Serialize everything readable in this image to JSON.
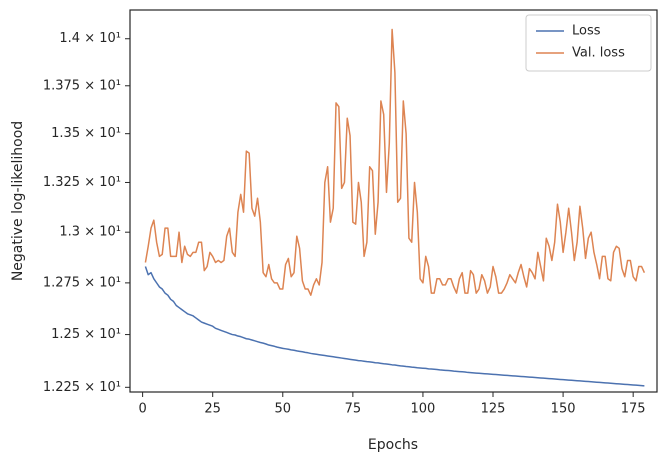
{
  "chart_data": {
    "type": "line",
    "xlabel": "Epochs",
    "ylabel": "Negative log-likelihood",
    "x": [
      1,
      2,
      3,
      4,
      5,
      6,
      7,
      8,
      9,
      10,
      11,
      12,
      13,
      14,
      15,
      16,
      17,
      18,
      19,
      20,
      21,
      22,
      23,
      24,
      25,
      26,
      27,
      28,
      29,
      30,
      31,
      32,
      33,
      34,
      35,
      36,
      37,
      38,
      39,
      40,
      41,
      42,
      43,
      44,
      45,
      46,
      47,
      48,
      49,
      50,
      51,
      52,
      53,
      54,
      55,
      56,
      57,
      58,
      59,
      60,
      61,
      62,
      63,
      64,
      65,
      66,
      67,
      68,
      69,
      70,
      71,
      72,
      73,
      74,
      75,
      76,
      77,
      78,
      79,
      80,
      81,
      82,
      83,
      84,
      85,
      86,
      87,
      88,
      89,
      90,
      91,
      92,
      93,
      94,
      95,
      96,
      97,
      98,
      99,
      100,
      101,
      102,
      103,
      104,
      105,
      106,
      107,
      108,
      109,
      110,
      111,
      112,
      113,
      114,
      115,
      116,
      117,
      118,
      119,
      120,
      121,
      122,
      123,
      124,
      125,
      126,
      127,
      128,
      129,
      130,
      131,
      132,
      133,
      134,
      135,
      136,
      137,
      138,
      139,
      140,
      141,
      142,
      143,
      144,
      145,
      146,
      147,
      148,
      149,
      150,
      151,
      152,
      153,
      154,
      155,
      156,
      157,
      158,
      159,
      160,
      161,
      162,
      163,
      164,
      165,
      166,
      167,
      168,
      169,
      170,
      171,
      172,
      173,
      174,
      175,
      176,
      177,
      178,
      179
    ],
    "series": [
      {
        "name": "Loss",
        "color": "#4c72b0",
        "values": [
          12.83,
          12.79,
          12.8,
          12.77,
          12.75,
          12.73,
          12.72,
          12.7,
          12.69,
          12.67,
          12.66,
          12.64,
          12.63,
          12.62,
          12.61,
          12.6,
          12.595,
          12.59,
          12.58,
          12.57,
          12.56,
          12.555,
          12.55,
          12.545,
          12.54,
          12.53,
          12.525,
          12.52,
          12.515,
          12.51,
          12.505,
          12.5,
          12.498,
          12.493,
          12.49,
          12.485,
          12.48,
          12.478,
          12.474,
          12.47,
          12.466,
          12.462,
          12.459,
          12.455,
          12.45,
          12.447,
          12.444,
          12.44,
          12.437,
          12.434,
          12.432,
          12.43,
          12.427,
          12.425,
          12.422,
          12.42,
          12.418,
          12.415,
          12.413,
          12.41,
          12.408,
          12.406,
          12.404,
          12.402,
          12.4,
          12.398,
          12.396,
          12.394,
          12.392,
          12.39,
          12.388,
          12.386,
          12.384,
          12.382,
          12.38,
          12.378,
          12.376,
          12.375,
          12.373,
          12.371,
          12.37,
          12.368,
          12.366,
          12.365,
          12.363,
          12.361,
          12.36,
          12.358,
          12.356,
          12.355,
          12.353,
          12.351,
          12.35,
          12.348,
          12.347,
          12.345,
          12.344,
          12.342,
          12.341,
          12.34,
          12.339,
          12.337,
          12.336,
          12.335,
          12.334,
          12.332,
          12.331,
          12.33,
          12.329,
          12.328,
          12.326,
          12.325,
          12.324,
          12.323,
          12.322,
          12.32,
          12.319,
          12.318,
          12.317,
          12.316,
          12.315,
          12.314,
          12.313,
          12.312,
          12.311,
          12.31,
          12.309,
          12.308,
          12.307,
          12.306,
          12.305,
          12.304,
          12.303,
          12.302,
          12.301,
          12.3,
          12.299,
          12.298,
          12.297,
          12.296,
          12.295,
          12.294,
          12.293,
          12.292,
          12.291,
          12.29,
          12.289,
          12.288,
          12.287,
          12.286,
          12.285,
          12.284,
          12.283,
          12.282,
          12.281,
          12.28,
          12.279,
          12.278,
          12.277,
          12.276,
          12.275,
          12.274,
          12.273,
          12.272,
          12.271,
          12.27,
          12.269,
          12.268,
          12.267,
          12.266,
          12.265,
          12.264,
          12.263,
          12.262,
          12.261,
          12.26,
          12.259,
          12.258,
          12.257
        ]
      },
      {
        "name": "Val. loss",
        "color": "#dd8452",
        "values": [
          12.85,
          12.93,
          13.02,
          13.06,
          12.95,
          12.88,
          12.89,
          13.02,
          13.02,
          12.88,
          12.88,
          12.88,
          13.0,
          12.85,
          12.93,
          12.89,
          12.88,
          12.9,
          12.9,
          12.95,
          12.95,
          12.81,
          12.83,
          12.9,
          12.88,
          12.85,
          12.86,
          12.85,
          12.86,
          12.98,
          13.02,
          12.9,
          12.88,
          13.1,
          13.19,
          13.1,
          13.41,
          13.4,
          13.12,
          13.08,
          13.17,
          13.05,
          12.8,
          12.78,
          12.84,
          12.77,
          12.75,
          12.75,
          12.72,
          12.72,
          12.84,
          12.87,
          12.78,
          12.8,
          12.98,
          12.92,
          12.76,
          12.72,
          12.72,
          12.69,
          12.74,
          12.77,
          12.74,
          12.85,
          13.25,
          13.33,
          13.05,
          13.12,
          13.66,
          13.64,
          13.22,
          13.25,
          13.58,
          13.49,
          13.05,
          13.04,
          13.25,
          13.15,
          12.88,
          12.95,
          13.33,
          13.31,
          12.99,
          13.15,
          13.67,
          13.6,
          13.2,
          13.45,
          14.05,
          13.82,
          13.15,
          13.17,
          13.67,
          13.5,
          12.97,
          12.95,
          13.25,
          13.1,
          12.77,
          12.75,
          12.88,
          12.83,
          12.7,
          12.7,
          12.77,
          12.77,
          12.74,
          12.74,
          12.77,
          12.77,
          12.73,
          12.7,
          12.77,
          12.8,
          12.7,
          12.7,
          12.81,
          12.79,
          12.7,
          12.72,
          12.79,
          12.76,
          12.7,
          12.73,
          12.83,
          12.78,
          12.7,
          12.7,
          12.72,
          12.75,
          12.79,
          12.77,
          12.75,
          12.8,
          12.84,
          12.78,
          12.73,
          12.82,
          12.8,
          12.77,
          12.9,
          12.83,
          12.76,
          12.97,
          12.93,
          12.86,
          12.95,
          13.14,
          13.05,
          12.9,
          13.0,
          13.12,
          13.0,
          12.86,
          12.95,
          13.13,
          13.02,
          12.87,
          12.97,
          13.0,
          12.9,
          12.84,
          12.77,
          12.88,
          12.88,
          12.77,
          12.76,
          12.9,
          12.93,
          12.92,
          12.82,
          12.78,
          12.86,
          12.86,
          12.78,
          12.76,
          12.83,
          12.83,
          12.8
        ]
      }
    ],
    "xlim": [
      -4.5,
      183.5
    ],
    "xticks": [
      0,
      25,
      50,
      75,
      100,
      125,
      150,
      175
    ],
    "ylim": [
      12.228,
      14.155
    ],
    "yscale": "log",
    "yticks": [
      {
        "value": 12.25,
        "label": "1.225 × 10¹"
      },
      {
        "value": 12.5,
        "label": "1.25 × 10¹"
      },
      {
        "value": 12.75,
        "label": "1.275 × 10¹"
      },
      {
        "value": 13,
        "label": "1.3 × 10¹"
      },
      {
        "value": 13.25,
        "label": "1.325 × 10¹"
      },
      {
        "value": 13.5,
        "label": "1.35 × 10¹"
      },
      {
        "value": 13.75,
        "label": "1.375 × 10¹"
      },
      {
        "value": 14,
        "label": "1.4 × 10¹"
      }
    ],
    "grid": false,
    "legend": "upper right"
  }
}
